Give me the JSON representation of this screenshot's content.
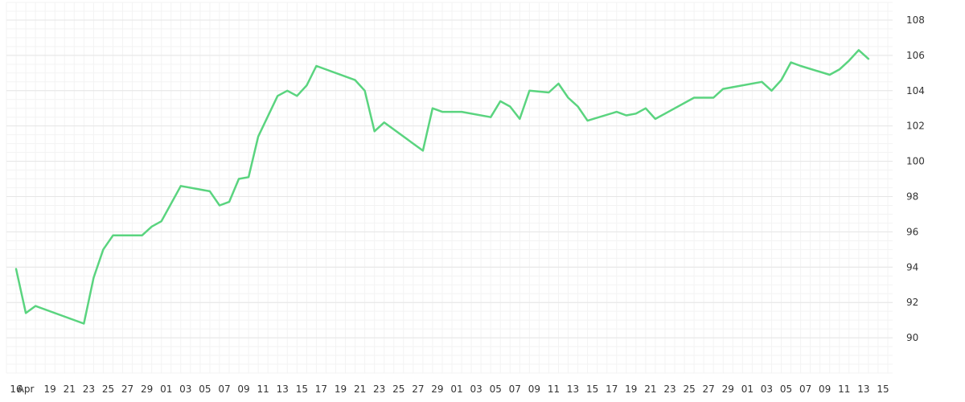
{
  "chart_data": {
    "type": "line",
    "title": "",
    "xlabel": "",
    "ylabel": "",
    "ylim": [
      88,
      109
    ],
    "grid": true,
    "y_axis_side": "right",
    "y_ticks": [
      90,
      92,
      94,
      96,
      98,
      100,
      102,
      104,
      106,
      108
    ],
    "x_tick_labels": [
      "16",
      "Apr",
      "19",
      "21",
      "23",
      "25",
      "27",
      "29",
      "01",
      "03",
      "05",
      "07",
      "09",
      "11",
      "13",
      "15",
      "17",
      "19",
      "21",
      "23",
      "25",
      "27",
      "29",
      "01",
      "03",
      "05",
      "07",
      "09",
      "11",
      "13",
      "15",
      "17",
      "19",
      "21",
      "23",
      "25",
      "27",
      "29",
      "01",
      "03",
      "05",
      "07",
      "09",
      "11",
      "13",
      "15"
    ],
    "x_tick_positions": [
      0,
      1,
      3.5,
      5.5,
      7.5,
      9.5,
      11.5,
      13.5,
      15.5,
      17.5,
      19.5,
      21.5,
      23.5,
      25.5,
      27.5,
      29.5,
      31.5,
      33.5,
      35.5,
      37.5,
      39.5,
      41.5,
      43.5,
      45.5,
      47.5,
      49.5,
      51.5,
      53.5,
      55.5,
      57.5,
      59.5,
      61.5,
      63.5,
      65.5,
      67.5,
      69.5,
      71.5,
      73.5,
      75.5,
      77.5,
      79.5,
      81.5,
      83.5,
      85.5,
      87.5,
      89.5
    ],
    "x_range": [
      -1,
      90.5
    ],
    "line_color": "#5ad47f",
    "series": [
      {
        "name": "",
        "x": [
          0,
          1,
          2,
          7,
          8,
          9,
          10,
          13,
          14,
          15,
          17,
          20,
          21,
          22,
          23,
          24,
          25,
          27,
          28,
          29,
          30,
          31,
          35,
          36,
          37,
          38,
          41,
          42,
          43,
          44,
          46,
          49,
          50,
          51,
          52,
          53,
          55,
          56,
          57,
          58,
          59,
          62,
          63,
          64,
          65,
          66,
          67,
          70,
          71,
          72,
          73,
          74,
          77,
          78,
          79,
          80,
          81,
          84,
          85,
          86,
          87,
          88
        ],
        "y": [
          93.9,
          91.4,
          91.8,
          90.8,
          93.4,
          95.0,
          95.8,
          95.8,
          96.3,
          96.6,
          98.6,
          98.3,
          97.5,
          97.7,
          99.0,
          99.1,
          101.4,
          103.7,
          104.0,
          103.7,
          104.3,
          105.4,
          104.6,
          104.0,
          101.7,
          102.2,
          101.0,
          100.6,
          103.0,
          102.8,
          102.8,
          102.5,
          103.4,
          103.1,
          102.4,
          104.0,
          103.9,
          104.4,
          103.6,
          103.1,
          102.3,
          102.8,
          102.6,
          102.7,
          103.0,
          102.4,
          102.7,
          103.6,
          103.6,
          103.6,
          104.1,
          104.2,
          104.5,
          104.0,
          104.6,
          105.6,
          105.4,
          104.9,
          105.2,
          105.7,
          106.3,
          105.8
        ]
      }
    ]
  }
}
